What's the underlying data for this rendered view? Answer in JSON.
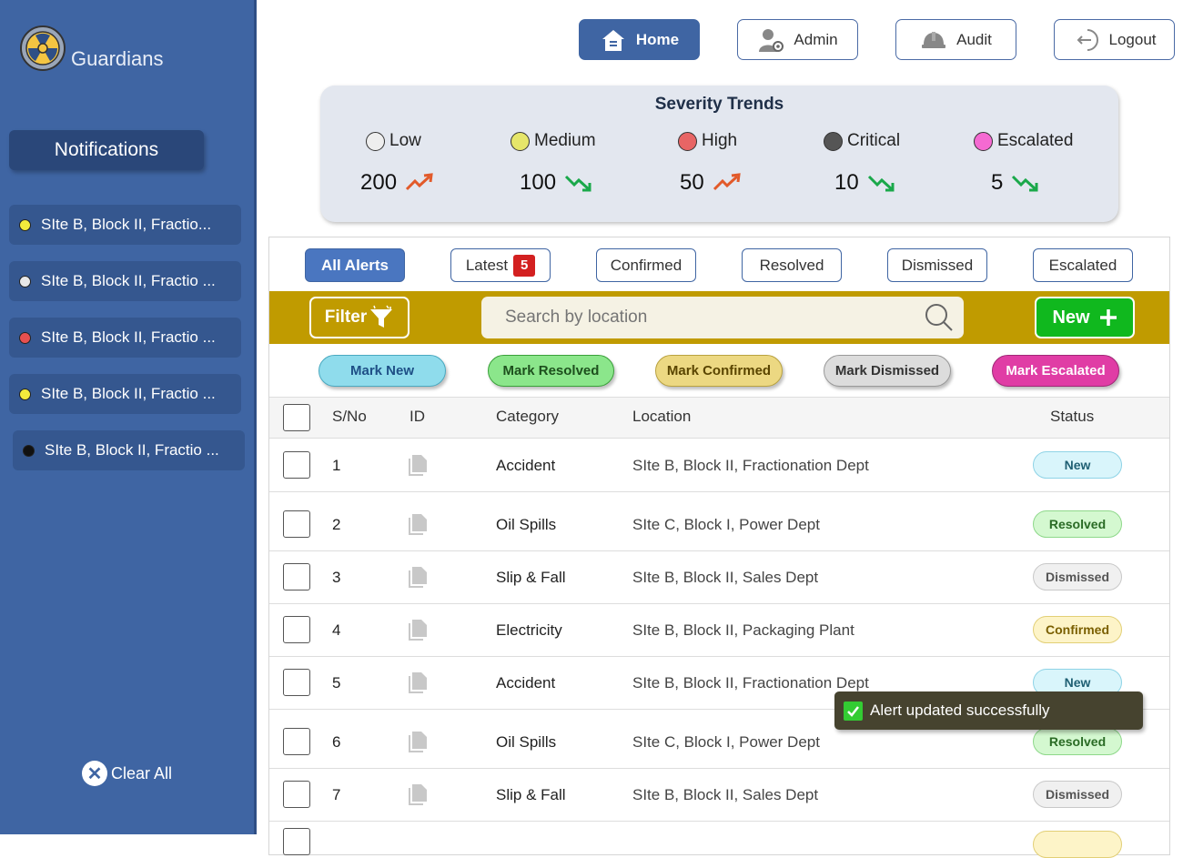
{
  "brand": {
    "name": "Guardians"
  },
  "sidebar": {
    "title": "Notifications",
    "items": [
      {
        "label": "SIte B, Block II, Fractio...",
        "dot_color": "#f2ea3c"
      },
      {
        "label": "SIte B, Block II, Fractio ...",
        "dot_color": "#e8e8e8"
      },
      {
        "label": "SIte B, Block II, Fractio ...",
        "dot_color": "#e85050"
      },
      {
        "label": "SIte B, Block II, Fractio ...",
        "dot_color": "#f2ea3c"
      },
      {
        "label": "SIte B, Block II, Fractio ...",
        "dot_color": "#111111"
      }
    ],
    "clear_all": "Clear All"
  },
  "nav": {
    "home": "Home",
    "admin": "Admin",
    "audit": "Audit",
    "logout": "Logout"
  },
  "severity": {
    "title": "Severity Trends",
    "levels": [
      {
        "label": "Low",
        "value": "200",
        "trend": "up",
        "color": "#eeeeee"
      },
      {
        "label": "Medium",
        "value": "100",
        "trend": "down",
        "color": "#e6e66a"
      },
      {
        "label": "High",
        "value": "50",
        "trend": "up",
        "color": "#e86565"
      },
      {
        "label": "Critical",
        "value": "10",
        "trend": "down",
        "color": "#555555"
      },
      {
        "label": "Escalated",
        "value": "5",
        "trend": "down",
        "color": "#f56ad2"
      }
    ]
  },
  "tabs": {
    "all": "All Alerts",
    "latest": "Latest",
    "latest_count": "5",
    "confirmed": "Confirmed",
    "resolved": "Resolved",
    "dismissed": "Dismissed",
    "escalated": "Escalated"
  },
  "toolbar": {
    "filter": "Filter",
    "search_placeholder": "Search by location",
    "new": "New"
  },
  "marks": {
    "new": "Mark New",
    "resolved": "Mark Resolved",
    "confirmed": "Mark Confirmed",
    "dismissed": "Mark Dismissed",
    "escalated": "Mark Escalated"
  },
  "table": {
    "headers": {
      "sno": "S/No",
      "id": "ID",
      "category": "Category",
      "location": "Location",
      "status": "Status"
    },
    "rows": [
      {
        "sno": "1",
        "category": "Accident",
        "location": "SIte B, Block II, Fractionation Dept",
        "status": "New"
      },
      {
        "sno": "2",
        "category": "Oil Spills",
        "location": "SIte C, Block I, Power Dept",
        "status": "Resolved"
      },
      {
        "sno": "3",
        "category": "Slip & Fall",
        "location": "SIte B, Block II, Sales Dept",
        "status": "Dismissed"
      },
      {
        "sno": "4",
        "category": "Electricity",
        "location": "SIte B, Block II, Packaging Plant",
        "status": "Confirmed"
      },
      {
        "sno": "5",
        "category": "Accident",
        "location": "SIte B, Block II, Fractionation Dept",
        "status": "New"
      },
      {
        "sno": "6",
        "category": "Oil Spills",
        "location": "SIte C, Block I, Power Dept",
        "status": "Resolved"
      },
      {
        "sno": "7",
        "category": "Slip & Fall",
        "location": "SIte B, Block II, Sales Dept",
        "status": "Dismissed"
      }
    ]
  },
  "toast": {
    "message": "Alert updated successfully"
  }
}
